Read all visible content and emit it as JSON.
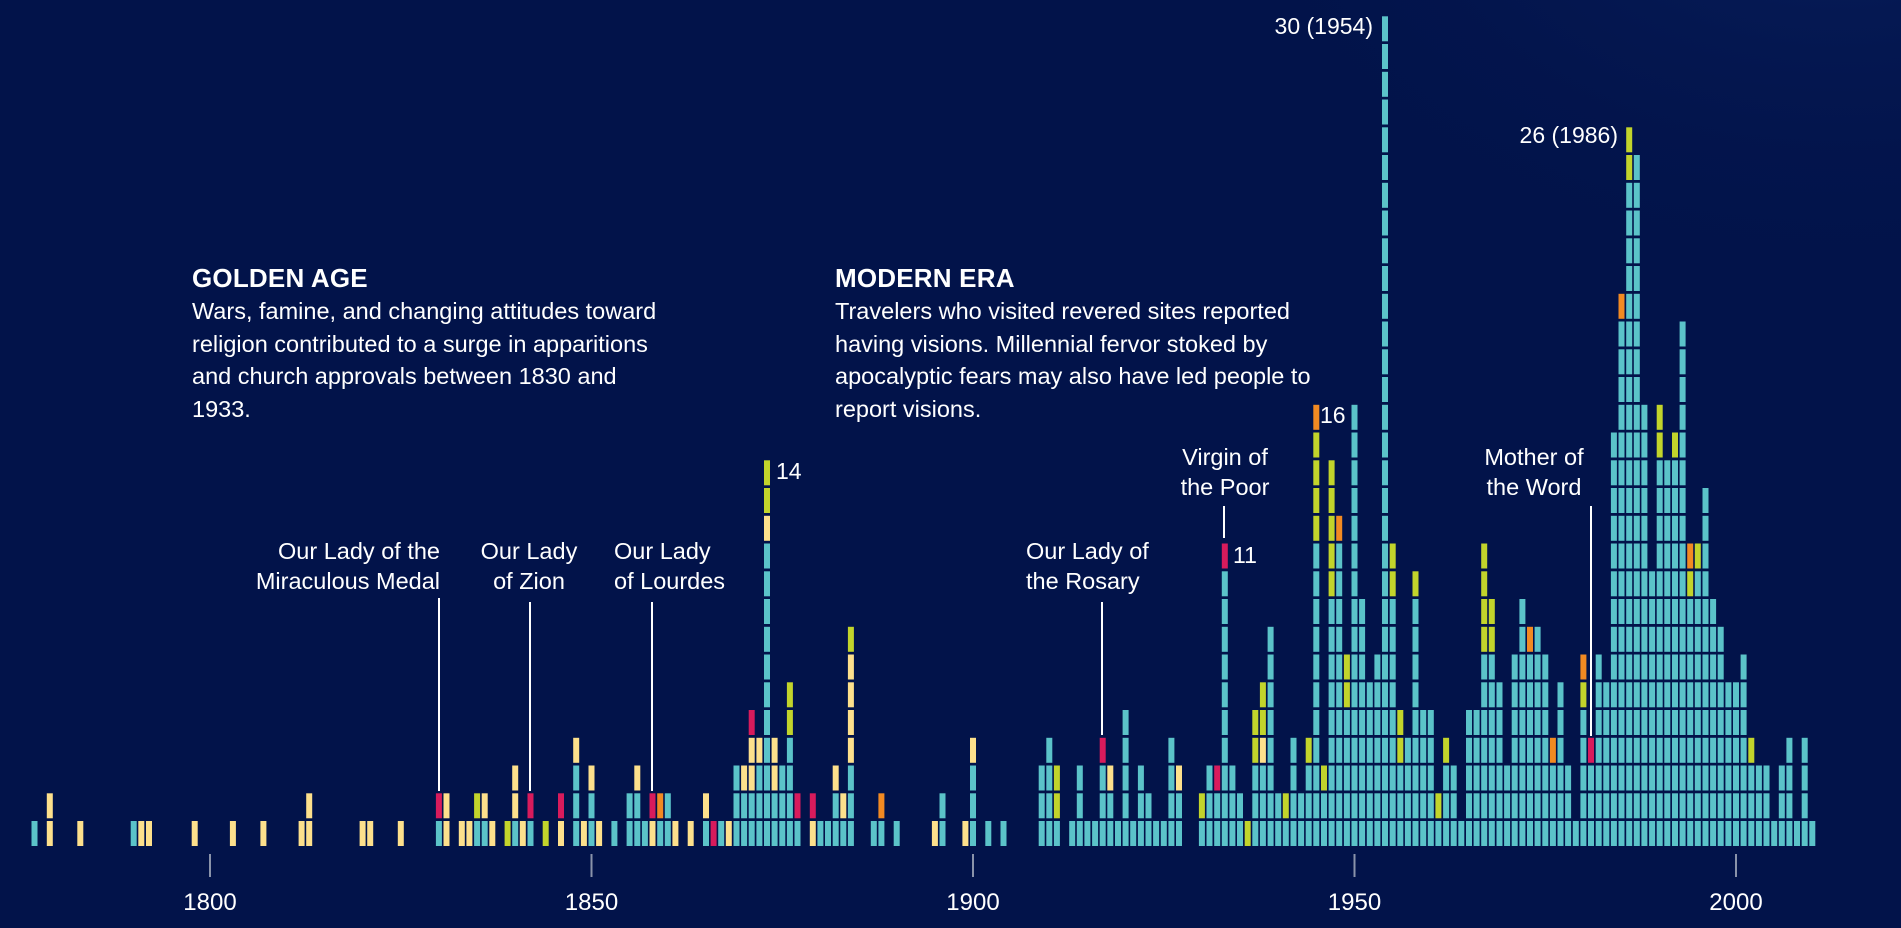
{
  "annotations": {
    "golden_age": {
      "title": "GOLDEN AGE",
      "body": "Wars, famine, and changing attitudes toward religion contributed to a surge in apparitions and church approvals between 1830 and 1933."
    },
    "modern_era": {
      "title": "MODERN ERA",
      "body": "Travelers who visited revered sites reported having visions. Millennial fervor stoked by apocalyptic fears may also have led people to report visions."
    },
    "labels": {
      "medal": [
        "Our Lady of the",
        "Miraculous Medal"
      ],
      "zion": [
        "Our Lady",
        "of Zion"
      ],
      "lourdes": [
        "Our Lady",
        "of Lourdes"
      ],
      "rosary": [
        "Our Lady of",
        "the Rosary"
      ],
      "poor": [
        "Virgin of",
        "the Poor"
      ],
      "word": [
        "Mother of",
        "the Word"
      ]
    },
    "peaks": {
      "p1873": "14",
      "p1933": "11",
      "p1945": "16",
      "p1954": "30 (1954)",
      "p1986": "26 (1986)"
    }
  },
  "chart_data": {
    "type": "bar",
    "subtype": "stacked unit columns (one block per reported apparition, by year)",
    "xlim": [
      1777,
      2010
    ],
    "x_ticks": [
      1800,
      1850,
      1900,
      1950,
      2000
    ],
    "ylim": [
      0,
      30
    ],
    "grid": false,
    "colors": {
      "T": "#5bc3c9",
      "Y": "#fde08c",
      "G": "#c2d42b",
      "R": "#d81b5c",
      "O": "#f28a22"
    },
    "columns": [
      {
        "year": 1777,
        "stack": "T"
      },
      {
        "year": 1779,
        "stack": "YY"
      },
      {
        "year": 1783,
        "stack": "Y"
      },
      {
        "year": 1790,
        "stack": "T"
      },
      {
        "year": 1791,
        "stack": "Y"
      },
      {
        "year": 1792,
        "stack": "Y"
      },
      {
        "year": 1798,
        "stack": "Y"
      },
      {
        "year": 1803,
        "stack": "Y"
      },
      {
        "year": 1807,
        "stack": "Y"
      },
      {
        "year": 1812,
        "stack": "Y"
      },
      {
        "year": 1813,
        "stack": "YY"
      },
      {
        "year": 1820,
        "stack": "Y"
      },
      {
        "year": 1821,
        "stack": "Y"
      },
      {
        "year": 1825,
        "stack": "Y"
      },
      {
        "year": 1830,
        "stack": "TR"
      },
      {
        "year": 1831,
        "stack": "YY"
      },
      {
        "year": 1833,
        "stack": "Y"
      },
      {
        "year": 1834,
        "stack": "Y"
      },
      {
        "year": 1835,
        "stack": "TG"
      },
      {
        "year": 1836,
        "stack": "TY"
      },
      {
        "year": 1837,
        "stack": "Y"
      },
      {
        "year": 1839,
        "stack": "G"
      },
      {
        "year": 1840,
        "stack": "TYY"
      },
      {
        "year": 1841,
        "stack": "Y"
      },
      {
        "year": 1842,
        "stack": "TR"
      },
      {
        "year": 1844,
        "stack": "G"
      },
      {
        "year": 1846,
        "stack": "YR"
      },
      {
        "year": 1848,
        "stack": "TTTY"
      },
      {
        "year": 1849,
        "stack": "Y"
      },
      {
        "year": 1850,
        "stack": "TTY"
      },
      {
        "year": 1851,
        "stack": "Y"
      },
      {
        "year": 1853,
        "stack": "T"
      },
      {
        "year": 1855,
        "stack": "TT"
      },
      {
        "year": 1856,
        "stack": "TTY"
      },
      {
        "year": 1857,
        "stack": "T"
      },
      {
        "year": 1858,
        "stack": "YR"
      },
      {
        "year": 1859,
        "stack": "TO"
      },
      {
        "year": 1860,
        "stack": "TT"
      },
      {
        "year": 1861,
        "stack": "Y"
      },
      {
        "year": 1863,
        "stack": "Y"
      },
      {
        "year": 1865,
        "stack": "TY"
      },
      {
        "year": 1866,
        "stack": "R"
      },
      {
        "year": 1867,
        "stack": "T"
      },
      {
        "year": 1868,
        "stack": "Y"
      },
      {
        "year": 1869,
        "stack": "TTT"
      },
      {
        "year": 1870,
        "stack": "TTY"
      },
      {
        "year": 1871,
        "stack": "TTYYR"
      },
      {
        "year": 1872,
        "stack": "TTTY"
      },
      {
        "year": 1873,
        "stack": "TTTTTTTTTTTYGG"
      },
      {
        "year": 1874,
        "stack": "TTYY"
      },
      {
        "year": 1875,
        "stack": "TTT"
      },
      {
        "year": 1876,
        "stack": "TTTTGG"
      },
      {
        "year": 1877,
        "stack": "TR"
      },
      {
        "year": 1879,
        "stack": "YR"
      },
      {
        "year": 1880,
        "stack": "T"
      },
      {
        "year": 1881,
        "stack": "T"
      },
      {
        "year": 1882,
        "stack": "TTY"
      },
      {
        "year": 1883,
        "stack": "TY"
      },
      {
        "year": 1884,
        "stack": "TTTYYYYG"
      },
      {
        "year": 1887,
        "stack": "T"
      },
      {
        "year": 1888,
        "stack": "TO"
      },
      {
        "year": 1890,
        "stack": "T"
      },
      {
        "year": 1895,
        "stack": "Y"
      },
      {
        "year": 1896,
        "stack": "TT"
      },
      {
        "year": 1899,
        "stack": "Y"
      },
      {
        "year": 1900,
        "stack": "TTTY"
      },
      {
        "year": 1902,
        "stack": "T"
      },
      {
        "year": 1904,
        "stack": "T"
      },
      {
        "year": 1909,
        "stack": "TTT"
      },
      {
        "year": 1910,
        "stack": "TTTT"
      },
      {
        "year": 1911,
        "stack": "TGG"
      },
      {
        "year": 1913,
        "stack": "T"
      },
      {
        "year": 1914,
        "stack": "TTT"
      },
      {
        "year": 1915,
        "stack": "T"
      },
      {
        "year": 1916,
        "stack": "T"
      },
      {
        "year": 1917,
        "stack": "TTTR"
      },
      {
        "year": 1918,
        "stack": "TTY"
      },
      {
        "year": 1919,
        "stack": "T"
      },
      {
        "year": 1920,
        "stack": "TTTTT"
      },
      {
        "year": 1921,
        "stack": "T"
      },
      {
        "year": 1922,
        "stack": "TTT"
      },
      {
        "year": 1923,
        "stack": "TT"
      },
      {
        "year": 1924,
        "stack": "T"
      },
      {
        "year": 1925,
        "stack": "T"
      },
      {
        "year": 1926,
        "stack": "TTTT"
      },
      {
        "year": 1927,
        "stack": "TTY"
      },
      {
        "year": 1930,
        "stack": "TG"
      },
      {
        "year": 1931,
        "stack": "TTT"
      },
      {
        "year": 1932,
        "stack": "TTR"
      },
      {
        "year": 1933,
        "stack": "TTTTTTTTTTR"
      },
      {
        "year": 1934,
        "stack": "TTT"
      },
      {
        "year": 1935,
        "stack": "TT"
      },
      {
        "year": 1936,
        "stack": "G"
      },
      {
        "year": 1937,
        "stack": "TTTGG"
      },
      {
        "year": 1938,
        "stack": "TTTYGG"
      },
      {
        "year": 1939,
        "stack": "TTTTTTTT"
      },
      {
        "year": 1940,
        "stack": "TT"
      },
      {
        "year": 1941,
        "stack": "TG"
      },
      {
        "year": 1942,
        "stack": "TTTT"
      },
      {
        "year": 1943,
        "stack": "TT"
      },
      {
        "year": 1944,
        "stack": "TTTG"
      },
      {
        "year": 1945,
        "stack": "TTTTTTTTTTTGGGGO"
      },
      {
        "year": 1946,
        "stack": "TTG"
      },
      {
        "year": 1947,
        "stack": "TTTTTTTTTGGGGG"
      },
      {
        "year": 1948,
        "stack": "TTTTTTTTTTTO"
      },
      {
        "year": 1949,
        "stack": "TTTTTGG"
      },
      {
        "year": 1950,
        "stack": "TTTTTTTTTTTTTTTT"
      },
      {
        "year": 1951,
        "stack": "TTTTTTTTT"
      },
      {
        "year": 1952,
        "stack": "TTTTTT"
      },
      {
        "year": 1953,
        "stack": "TTTTTTT"
      },
      {
        "year": 1954,
        "stack": "TTTTTTTTTTTTTTTTTTTTTTTTTTTTTT"
      },
      {
        "year": 1955,
        "stack": "TTTTTTTTTGG"
      },
      {
        "year": 1956,
        "stack": "TTTGG"
      },
      {
        "year": 1957,
        "stack": "TTTT"
      },
      {
        "year": 1958,
        "stack": "TTTTTTTTTG"
      },
      {
        "year": 1959,
        "stack": "TTTTT"
      },
      {
        "year": 1960,
        "stack": "TTTTT"
      },
      {
        "year": 1961,
        "stack": "TG"
      },
      {
        "year": 1962,
        "stack": "TTTG"
      },
      {
        "year": 1963,
        "stack": "TTT"
      },
      {
        "year": 1964,
        "stack": "T"
      },
      {
        "year": 1965,
        "stack": "TTTTT"
      },
      {
        "year": 1966,
        "stack": "TTTTT"
      },
      {
        "year": 1967,
        "stack": "TTTTTTTGGGG"
      },
      {
        "year": 1968,
        "stack": "TTTTTTTGG"
      },
      {
        "year": 1969,
        "stack": "TTTTTT"
      },
      {
        "year": 1970,
        "stack": "TTT"
      },
      {
        "year": 1971,
        "stack": "TTTTTTT"
      },
      {
        "year": 1972,
        "stack": "TTTTTTTTT"
      },
      {
        "year": 1973,
        "stack": "TTTTTTTO"
      },
      {
        "year": 1974,
        "stack": "TTTTTTTT"
      },
      {
        "year": 1975,
        "stack": "TTTTTTT"
      },
      {
        "year": 1976,
        "stack": "TTTO"
      },
      {
        "year": 1977,
        "stack": "TTTTTT"
      },
      {
        "year": 1978,
        "stack": "TTT"
      },
      {
        "year": 1979,
        "stack": "T"
      },
      {
        "year": 1980,
        "stack": "TTTTTGO"
      },
      {
        "year": 1981,
        "stack": "TTTR"
      },
      {
        "year": 1982,
        "stack": "TTTTTTT"
      },
      {
        "year": 1983,
        "stack": "TTTTTT"
      },
      {
        "year": 1984,
        "stack": "TTTTTTTTTTTTTTT"
      },
      {
        "year": 1985,
        "stack": "TTTTTTTTTTTTTTTTTTTO"
      },
      {
        "year": 1986,
        "stack": "TTTTTTTTTTTTTTTTTTTTTTTTGG"
      },
      {
        "year": 1987,
        "stack": "TTTTTTTTTTTTTTTTTTTTTTTTT"
      },
      {
        "year": 1988,
        "stack": "TTTTTTTTTTTTTTTT"
      },
      {
        "year": 1989,
        "stack": "TTTTTTTTTT"
      },
      {
        "year": 1990,
        "stack": "TTTTTTTTTTTTTTGG"
      },
      {
        "year": 1991,
        "stack": "TTTTTTTTTTTTTT"
      },
      {
        "year": 1992,
        "stack": "TTTTTTTTTTTTTTG"
      },
      {
        "year": 1993,
        "stack": "TTTTTTTTTTTTTTTTTTT"
      },
      {
        "year": 1994,
        "stack": "TTTTTTTTTGO"
      },
      {
        "year": 1995,
        "stack": "TTTTTTTTTTG"
      },
      {
        "year": 1996,
        "stack": "TTTTTTTTTTTTT"
      },
      {
        "year": 1997,
        "stack": "TTTTTTTTT"
      },
      {
        "year": 1998,
        "stack": "TTTTTTTT"
      },
      {
        "year": 1999,
        "stack": "TTTTTT"
      },
      {
        "year": 2000,
        "stack": "TTTTTT"
      },
      {
        "year": 2001,
        "stack": "TTTTTTT"
      },
      {
        "year": 2002,
        "stack": "TTTG"
      },
      {
        "year": 2003,
        "stack": "TTT"
      },
      {
        "year": 2004,
        "stack": "TTT"
      },
      {
        "year": 2005,
        "stack": "T"
      },
      {
        "year": 2006,
        "stack": "TTT"
      },
      {
        "year": 2007,
        "stack": "TTTT"
      },
      {
        "year": 2008,
        "stack": "T"
      },
      {
        "year": 2009,
        "stack": "TTTT"
      },
      {
        "year": 2010,
        "stack": "T"
      }
    ]
  }
}
